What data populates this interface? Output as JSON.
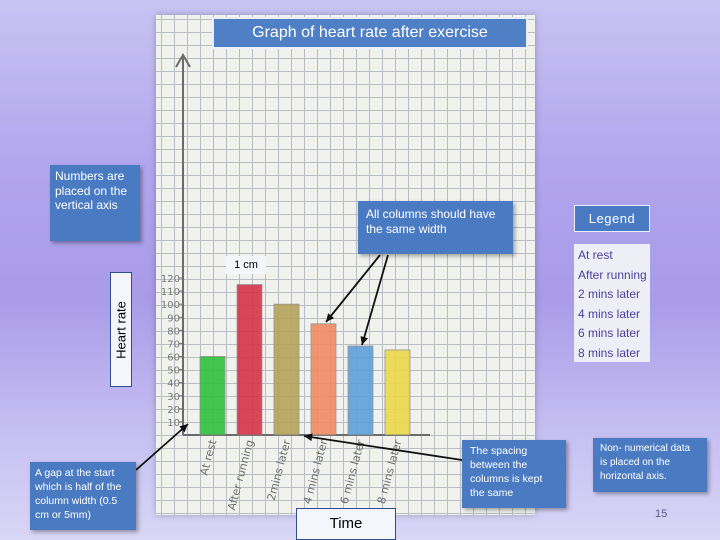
{
  "slide": {
    "title": "Graph of heart rate after exercise",
    "page_number": "15"
  },
  "callouts": {
    "numbers_axis": "Numbers are placed on the vertical axis",
    "same_width": "All columns should have the same width",
    "gap_start": "A gap at the start which is half of the column width (0.5 cm or 5mm)",
    "spacing": "The spacing between the columns is kept the same",
    "non_numerical": "Non- numerical data is placed on the horizontal axis.",
    "scale_note": "1 cm"
  },
  "legend": {
    "heading": "Legend",
    "items": [
      "At rest",
      "After running",
      "2 mins later",
      "4 mins later",
      "6 mins later",
      "8 mins later"
    ]
  },
  "chart_data": {
    "type": "bar",
    "title": "Graph of heart rate after exercise",
    "xlabel": "Time",
    "ylabel": "Heart rate",
    "categories": [
      "At rest",
      "After running",
      "2mins later",
      "4 mins later",
      "6 mins later",
      "8 mins later"
    ],
    "values": [
      60,
      115,
      100,
      85,
      68,
      65
    ],
    "colors": [
      "#2fc13d",
      "#d6344a",
      "#b7a35a",
      "#f08a64",
      "#5fa1dc",
      "#ecd84a"
    ],
    "y_ticks": [
      10,
      20,
      30,
      40,
      50,
      60,
      70,
      80,
      90,
      100,
      110,
      120
    ],
    "y_tick_labels": [
      "10",
      "20",
      "30",
      "40",
      "50",
      "60",
      "70",
      "80",
      "90",
      "100",
      "110",
      "120"
    ],
    "ylim": [
      0,
      120
    ],
    "grid": true,
    "legend_position": "right"
  }
}
